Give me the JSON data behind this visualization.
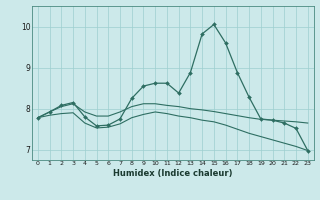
{
  "xlabel": "Humidex (Indice chaleur)",
  "bg_color": "#cce9ea",
  "grid_color": "#9ecfcf",
  "line_color": "#2e6e62",
  "xlim": [
    -0.5,
    23.5
  ],
  "ylim": [
    6.75,
    10.5
  ],
  "yticks": [
    7,
    8,
    9,
    10
  ],
  "xticks": [
    0,
    1,
    2,
    3,
    4,
    5,
    6,
    7,
    8,
    9,
    10,
    11,
    12,
    13,
    14,
    15,
    16,
    17,
    18,
    19,
    20,
    21,
    22,
    23
  ],
  "line1_x": [
    0,
    1,
    2,
    3,
    4,
    5,
    6,
    7,
    8,
    9,
    10,
    11,
    12,
    13,
    14,
    15,
    16,
    17,
    18,
    19,
    20,
    21,
    22,
    23
  ],
  "line1_y": [
    7.78,
    7.92,
    8.05,
    8.12,
    7.92,
    7.82,
    7.82,
    7.92,
    8.05,
    8.12,
    8.12,
    8.08,
    8.05,
    8.0,
    7.97,
    7.93,
    7.88,
    7.83,
    7.78,
    7.74,
    7.72,
    7.7,
    7.68,
    7.65
  ],
  "line2_x": [
    0,
    1,
    2,
    3,
    4,
    5,
    6,
    7,
    8,
    9,
    10,
    11,
    12,
    13,
    14,
    15,
    16,
    17,
    18,
    19,
    20,
    21,
    22,
    23
  ],
  "line2_y": [
    7.78,
    7.92,
    8.08,
    8.15,
    7.8,
    7.58,
    7.6,
    7.75,
    8.25,
    8.55,
    8.62,
    8.62,
    8.38,
    8.88,
    9.82,
    10.05,
    9.6,
    8.88,
    8.28,
    7.75,
    7.72,
    7.65,
    7.52,
    6.98
  ],
  "line3_x": [
    0,
    1,
    2,
    3,
    4,
    5,
    6,
    7,
    8,
    9,
    10,
    11,
    12,
    13,
    14,
    15,
    16,
    17,
    18,
    19,
    20,
    21,
    22,
    23
  ],
  "line3_y": [
    7.78,
    7.84,
    7.88,
    7.9,
    7.65,
    7.53,
    7.55,
    7.63,
    7.78,
    7.86,
    7.92,
    7.88,
    7.82,
    7.78,
    7.72,
    7.68,
    7.6,
    7.5,
    7.4,
    7.32,
    7.24,
    7.16,
    7.08,
    6.98
  ]
}
